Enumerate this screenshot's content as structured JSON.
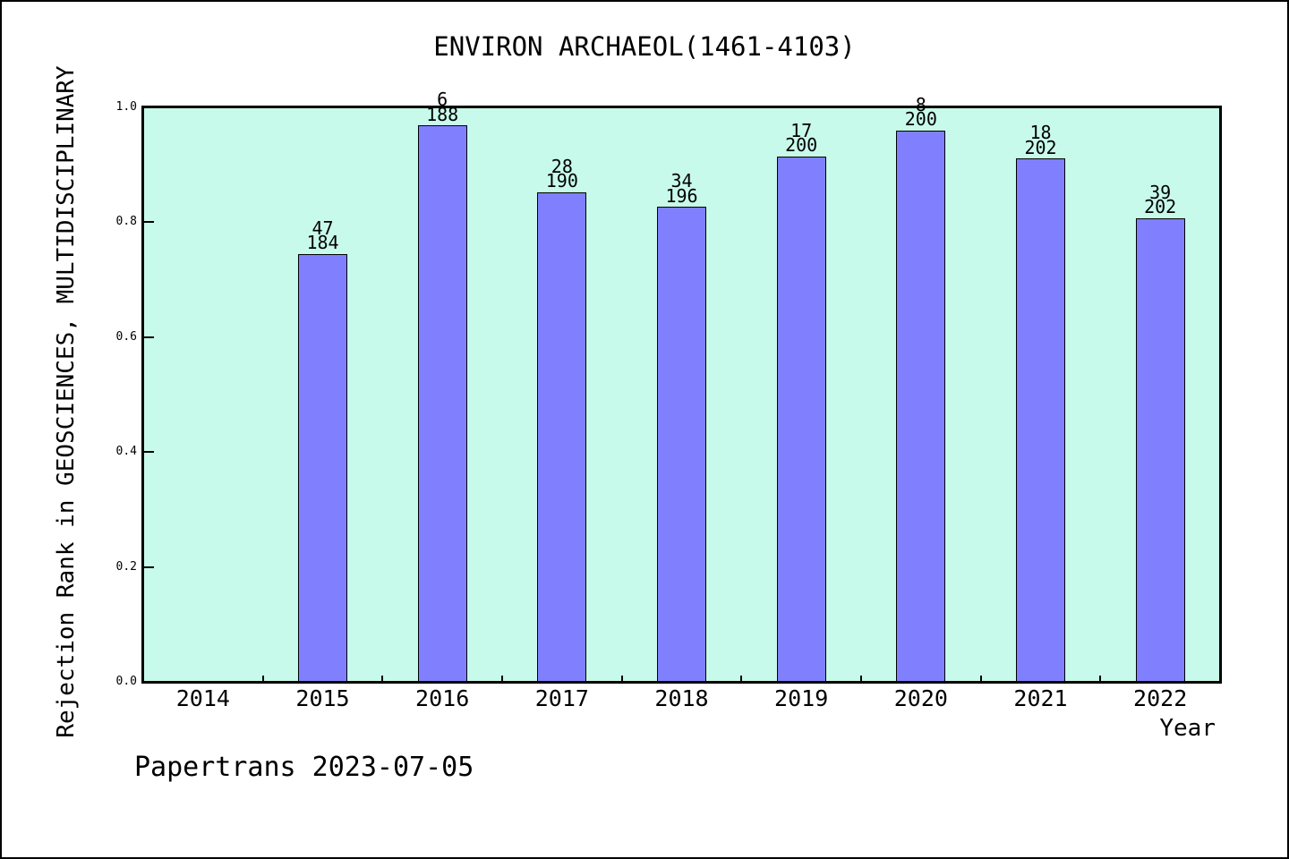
{
  "page": {
    "footer": "Papertrans 2023-07-05"
  },
  "colors": {
    "page_bg": "#FFFFFF",
    "plot_bg": "#C8FAEB",
    "bar_fill": "#8080FF",
    "bar_edge": "#000000",
    "text": "#000000",
    "frame": "#000000"
  },
  "chart_data": {
    "type": "bar",
    "title": "ENVIRON ARCHAEOL(1461-4103)",
    "xlabel": "Year",
    "ylabel": "Rejection Rank in GEOSCIENCES, MULTIDISCIPLINARY",
    "ylim": [
      0.0,
      1.0
    ],
    "yticks": [
      1.0,
      0.8,
      0.6,
      0.4,
      0.2,
      0.0
    ],
    "ytick_labels": [
      "1.0",
      "0.8",
      "0.6",
      "0.4",
      "0.2",
      "0.0"
    ],
    "grid": false,
    "legend_position": "none",
    "categories": [
      "2014",
      "2015",
      "2016",
      "2017",
      "2018",
      "2019",
      "2020",
      "2021",
      "2022"
    ],
    "bars": [
      {
        "category": "2015",
        "rank": 47,
        "total": 184,
        "value": 0.7446
      },
      {
        "category": "2016",
        "rank": 6,
        "total": 188,
        "value": 0.9681
      },
      {
        "category": "2017",
        "rank": 28,
        "total": 190,
        "value": 0.8526
      },
      {
        "category": "2018",
        "rank": 34,
        "total": 196,
        "value": 0.8265
      },
      {
        "category": "2019",
        "rank": 17,
        "total": 200,
        "value": 0.915
      },
      {
        "category": "2020",
        "rank": 8,
        "total": 200,
        "value": 0.96
      },
      {
        "category": "2021",
        "rank": 18,
        "total": 202,
        "value": 0.9109
      },
      {
        "category": "2022",
        "rank": 39,
        "total": 202,
        "value": 0.8069
      }
    ],
    "annotation_format": "rank over total, stacked above each bar"
  }
}
